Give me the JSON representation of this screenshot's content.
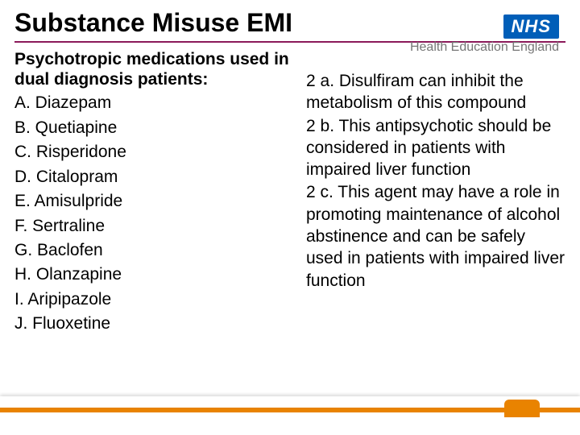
{
  "title": "Substance Misuse EMI",
  "logo": {
    "short": "NHS",
    "subtitle": "Health Education England"
  },
  "left": {
    "heading": "Psychotropic medications used in dual diagnosis patients:",
    "options": [
      "A. Diazepam",
      "B. Quetiapine",
      "C. Risperidone",
      "D. Citalopram",
      "E. Amisulpride",
      "F. Sertraline",
      "G. Baclofen",
      "H. Olanzapine",
      "I. Aripipazole",
      "J. Fluoxetine"
    ]
  },
  "right": {
    "clues": [
      "2 a. Disulfiram can inhibit the metabolism of this compound",
      "2 b. This antipsychotic should be considered in patients with impaired liver function",
      "2 c. This agent may have a role in promoting maintenance of alcohol abstinence and can be safely used in patients with impaired liver function"
    ]
  },
  "colors": {
    "rule": "#8b1a5a",
    "accent": "#e98300",
    "nhs_blue": "#005eb8",
    "hee_grey": "#767676"
  }
}
